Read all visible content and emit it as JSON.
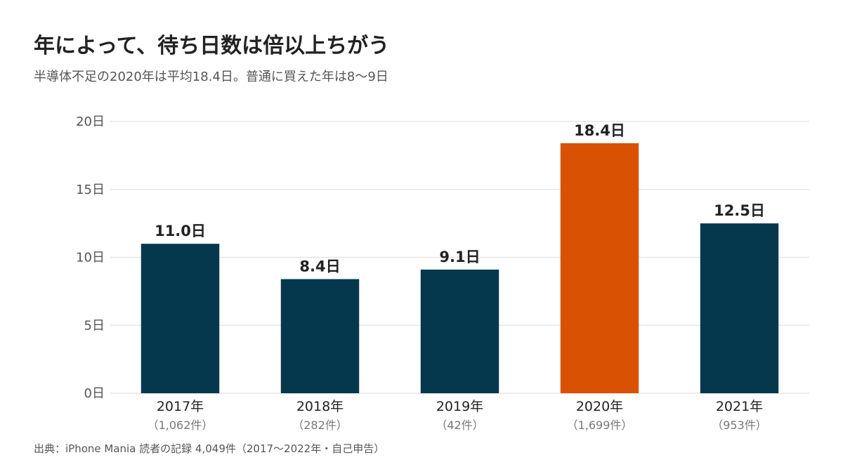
{
  "chart_data": {
    "type": "bar",
    "title": "年によって、待ち日数は倍以上ちがう",
    "subtitle": "半導体不足の2020年は平均18.4日。普通に買えた年は8〜9日",
    "source": "出典：iPhone Mania 読者の記録 4,049件（2017〜2022年・自己申告）",
    "categories": [
      "2017年",
      "2018年",
      "2019年",
      "2020年",
      "2021年"
    ],
    "counts": [
      "（1,062件）",
      "（282件）",
      "（42件）",
      "（1,699件）",
      "（953件）"
    ],
    "values": [
      11.0,
      8.4,
      9.1,
      18.4,
      12.5
    ],
    "value_labels": [
      "11.0日",
      "8.4日",
      "9.1日",
      "18.4日",
      "12.5日"
    ],
    "ylim": [
      0,
      20
    ],
    "yticks": [
      0,
      5,
      10,
      15,
      20
    ],
    "ytick_labels": [
      "0日",
      "5日",
      "10日",
      "15日",
      "20日"
    ],
    "grid": true,
    "highlight_index": 3,
    "colors": {
      "bar": "#06384d",
      "highlight": "#d95204",
      "grid": "#e6e6e6"
    }
  }
}
